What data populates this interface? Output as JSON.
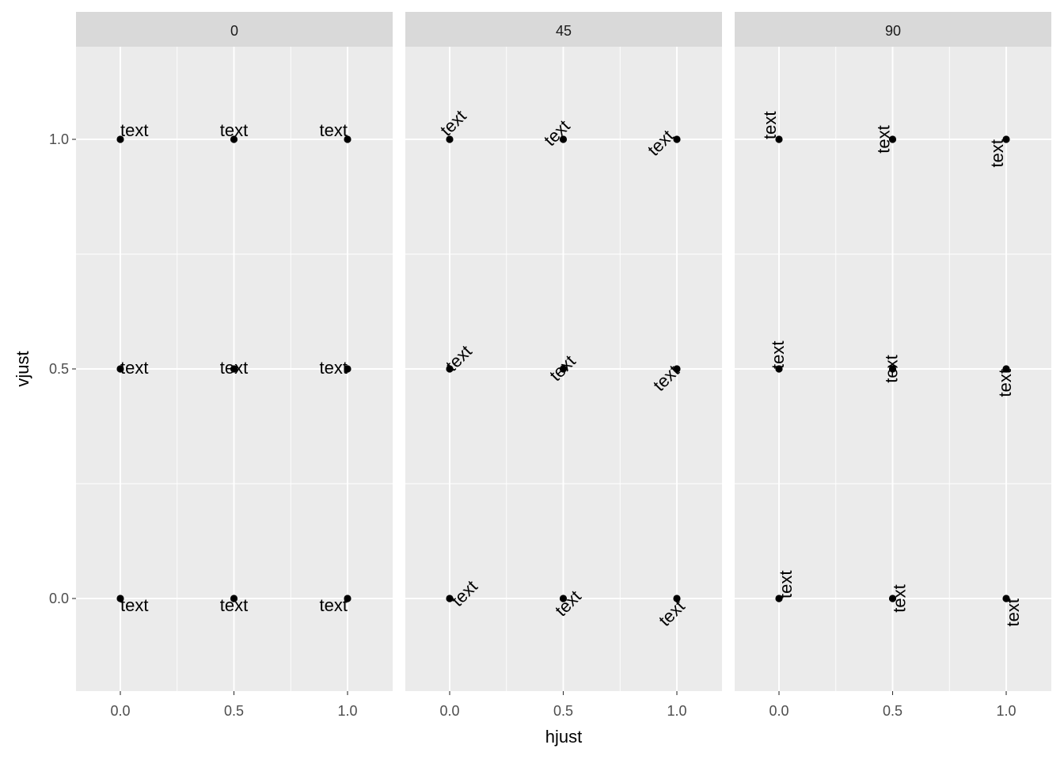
{
  "chart_data": {
    "type": "scatter",
    "facet_variable": "angle",
    "facets": [
      "0",
      "45",
      "90"
    ],
    "xlabel": "hjust",
    "ylabel": "vjust",
    "x_ticks": [
      0.0,
      0.5,
      1.0
    ],
    "x_tick_labels": [
      "0.0",
      "0.5",
      "1.0"
    ],
    "y_ticks": [
      0.0,
      0.5,
      1.0
    ],
    "y_tick_labels": [
      "0.0",
      "0.5",
      "1.0"
    ],
    "xlim": [
      -0.2,
      1.2
    ],
    "ylim": [
      -0.2,
      1.2
    ],
    "grid": true,
    "point_color": "#000000",
    "point_label": "text",
    "points": [
      {
        "hjust": 0.0,
        "vjust": 1.0
      },
      {
        "hjust": 0.5,
        "vjust": 1.0
      },
      {
        "hjust": 1.0,
        "vjust": 1.0
      },
      {
        "hjust": 0.0,
        "vjust": 0.5
      },
      {
        "hjust": 0.5,
        "vjust": 0.5
      },
      {
        "hjust": 1.0,
        "vjust": 0.5
      },
      {
        "hjust": 0.0,
        "vjust": 0.0
      },
      {
        "hjust": 0.5,
        "vjust": 0.0
      },
      {
        "hjust": 1.0,
        "vjust": 0.0
      }
    ]
  }
}
